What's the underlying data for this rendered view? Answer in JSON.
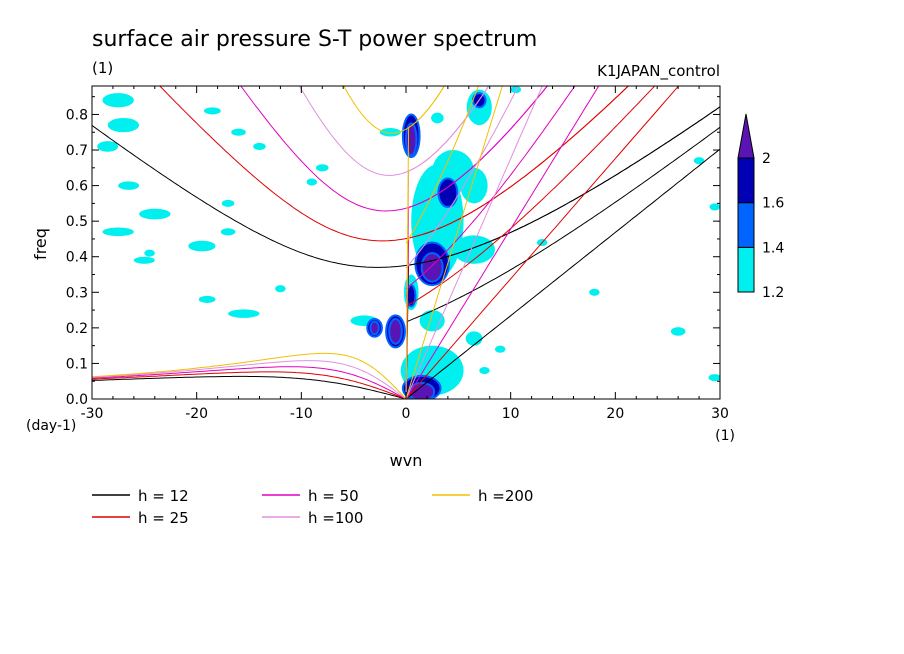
{
  "chart_data": {
    "type": "heatmap",
    "title": "surface air pressure S-T power spectrum",
    "units_label": "(1)",
    "run_label": "K1JAPAN_control",
    "xlabel": "wvn",
    "ylabel": "freq",
    "x_unit": "(1)",
    "y_unit": "(day-1)",
    "xlim": [
      -30,
      30
    ],
    "ylim": [
      0,
      0.88
    ],
    "x_ticks": [
      -30,
      -20,
      -10,
      0,
      10,
      20,
      30
    ],
    "x_tick_labels": [
      "-30",
      "-20",
      "-10",
      "0",
      "10",
      "20",
      "30"
    ],
    "y_ticks": [
      0,
      0.1,
      0.2,
      0.3,
      0.4,
      0.5,
      0.6,
      0.7,
      0.8
    ],
    "y_tick_labels": [
      "0.0",
      "0.1",
      "0.2",
      "0.3",
      "0.4",
      "0.5",
      "0.6",
      "0.7",
      "0.8"
    ],
    "colorbar": {
      "levels": [
        1.2,
        1.4,
        1.6,
        2
      ],
      "level_labels": [
        "1.2",
        "1.4",
        "1.6",
        "2"
      ],
      "colors": [
        "#00f0f0",
        "#0064ff",
        "#0000b4",
        "#5a14b4"
      ]
    },
    "contours": [
      {
        "level": 1.2,
        "x": -27.5,
        "y": 0.84,
        "rx": 1.5,
        "ry": 0.02
      },
      {
        "level": 1.2,
        "x": -27,
        "y": 0.77,
        "rx": 1.5,
        "ry": 0.02
      },
      {
        "level": 1.2,
        "x": -28.5,
        "y": 0.71,
        "rx": 1,
        "ry": 0.015
      },
      {
        "level": 1.2,
        "x": -26.5,
        "y": 0.6,
        "rx": 1,
        "ry": 0.012
      },
      {
        "level": 1.2,
        "x": -24,
        "y": 0.52,
        "rx": 1.5,
        "ry": 0.015
      },
      {
        "level": 1.2,
        "x": -27.5,
        "y": 0.47,
        "rx": 1.5,
        "ry": 0.012
      },
      {
        "level": 1.2,
        "x": -25,
        "y": 0.39,
        "rx": 1,
        "ry": 0.01
      },
      {
        "level": 1.2,
        "x": -19.5,
        "y": 0.43,
        "rx": 1.3,
        "ry": 0.015
      },
      {
        "level": 1.2,
        "x": -24.5,
        "y": 0.41,
        "rx": 0.5,
        "ry": 0.01
      },
      {
        "level": 1.2,
        "x": -17,
        "y": 0.47,
        "rx": 0.7,
        "ry": 0.01
      },
      {
        "level": 1.2,
        "x": -15.5,
        "y": 0.24,
        "rx": 1.5,
        "ry": 0.012
      },
      {
        "level": 1.2,
        "x": -19,
        "y": 0.28,
        "rx": 0.8,
        "ry": 0.01
      },
      {
        "level": 1.2,
        "x": -4,
        "y": 0.22,
        "rx": 1.3,
        "ry": 0.015
      },
      {
        "level": 1.2,
        "x": -1.5,
        "y": 0.75,
        "rx": 1,
        "ry": 0.012
      },
      {
        "level": 1.2,
        "x": -18.5,
        "y": 0.81,
        "rx": 0.8,
        "ry": 0.01
      },
      {
        "level": 1.2,
        "x": -16,
        "y": 0.75,
        "rx": 0.7,
        "ry": 0.01
      },
      {
        "level": 1.2,
        "x": -14,
        "y": 0.71,
        "rx": 0.6,
        "ry": 0.01
      },
      {
        "level": 1.2,
        "x": -8,
        "y": 0.65,
        "rx": 0.6,
        "ry": 0.01
      },
      {
        "level": 1.2,
        "x": -9,
        "y": 0.61,
        "rx": 0.5,
        "ry": 0.01
      },
      {
        "level": 1.2,
        "x": -17,
        "y": 0.55,
        "rx": 0.6,
        "ry": 0.01
      },
      {
        "level": 1.2,
        "x": -12,
        "y": 0.31,
        "rx": 0.5,
        "ry": 0.01
      },
      {
        "level": 1.2,
        "x": 0.5,
        "y": 0.3,
        "rx": 0.7,
        "ry": 0.05
      },
      {
        "level": 1.2,
        "x": 3,
        "y": 0.79,
        "rx": 0.6,
        "ry": 0.015
      },
      {
        "level": 1.2,
        "x": 3,
        "y": 0.5,
        "rx": 2.5,
        "ry": 0.16
      },
      {
        "level": 1.2,
        "x": 4.5,
        "y": 0.64,
        "rx": 2,
        "ry": 0.06
      },
      {
        "level": 1.2,
        "x": 6.5,
        "y": 0.6,
        "rx": 1.3,
        "ry": 0.05
      },
      {
        "level": 1.2,
        "x": 6.5,
        "y": 0.42,
        "rx": 2,
        "ry": 0.04
      },
      {
        "level": 1.2,
        "x": 2.5,
        "y": 0.22,
        "rx": 1.2,
        "ry": 0.03
      },
      {
        "level": 1.2,
        "x": 2.5,
        "y": 0.08,
        "rx": 3,
        "ry": 0.07
      },
      {
        "level": 1.2,
        "x": 7,
        "y": 0.82,
        "rx": 1.2,
        "ry": 0.05
      },
      {
        "level": 1.2,
        "x": 10.5,
        "y": 0.87,
        "rx": 0.5,
        "ry": 0.01
      },
      {
        "level": 1.2,
        "x": 6.5,
        "y": 0.17,
        "rx": 0.8,
        "ry": 0.02
      },
      {
        "level": 1.2,
        "x": 7.5,
        "y": 0.08,
        "rx": 0.5,
        "ry": 0.01
      },
      {
        "level": 1.2,
        "x": 9,
        "y": 0.14,
        "rx": 0.5,
        "ry": 0.01
      },
      {
        "level": 1.2,
        "x": 26,
        "y": 0.19,
        "rx": 0.7,
        "ry": 0.012
      },
      {
        "level": 1.2,
        "x": 29.5,
        "y": 0.06,
        "rx": 0.6,
        "ry": 0.01
      },
      {
        "level": 1.2,
        "x": 29.5,
        "y": 0.54,
        "rx": 0.5,
        "ry": 0.01
      },
      {
        "level": 1.2,
        "x": 28,
        "y": 0.67,
        "rx": 0.5,
        "ry": 0.01
      },
      {
        "level": 1.2,
        "x": 18,
        "y": 0.3,
        "rx": 0.5,
        "ry": 0.01
      },
      {
        "level": 1.2,
        "x": 13,
        "y": 0.44,
        "rx": 0.5,
        "ry": 0.01
      },
      {
        "level": 1.6,
        "x": 0.5,
        "y": 0.74,
        "rx": 0.8,
        "ry": 0.06
      },
      {
        "level": 1.6,
        "x": 2.5,
        "y": 0.38,
        "rx": 1.6,
        "ry": 0.06
      },
      {
        "level": 1.6,
        "x": -1,
        "y": 0.19,
        "rx": 0.9,
        "ry": 0.045
      },
      {
        "level": 1.6,
        "x": -3,
        "y": 0.2,
        "rx": 0.7,
        "ry": 0.025
      },
      {
        "level": 1.6,
        "x": 1.5,
        "y": 0.03,
        "rx": 1.8,
        "ry": 0.035
      },
      {
        "level": 1.6,
        "x": 0.5,
        "y": 0.29,
        "rx": 0.4,
        "ry": 0.03
      },
      {
        "level": 1.6,
        "x": 7,
        "y": 0.84,
        "rx": 0.6,
        "ry": 0.02
      },
      {
        "level": 1.6,
        "x": 4,
        "y": 0.58,
        "rx": 0.9,
        "ry": 0.04
      },
      {
        "level": 2,
        "x": 0.5,
        "y": 0.73,
        "rx": 0.5,
        "ry": 0.045
      },
      {
        "level": 2,
        "x": 2.5,
        "y": 0.37,
        "rx": 1,
        "ry": 0.04
      },
      {
        "level": 2,
        "x": -1,
        "y": 0.19,
        "rx": 0.6,
        "ry": 0.035
      },
      {
        "level": 2,
        "x": 1.5,
        "y": 0.02,
        "rx": 1.2,
        "ry": 0.025
      },
      {
        "level": 2,
        "x": -3,
        "y": 0.2,
        "rx": 0.4,
        "ry": 0.018
      }
    ],
    "dispersion_curves": [
      {
        "label": "h = 12",
        "h": 12,
        "color": "#000000"
      },
      {
        "label": "h = 25",
        "h": 25,
        "color": "#e00000"
      },
      {
        "label": "h = 50",
        "h": 50,
        "color": "#e000c0"
      },
      {
        "label": "h =100",
        "h": 100,
        "color": "#e090e0"
      },
      {
        "label": "h =200",
        "h": 200,
        "color": "#f0c000"
      }
    ]
  }
}
